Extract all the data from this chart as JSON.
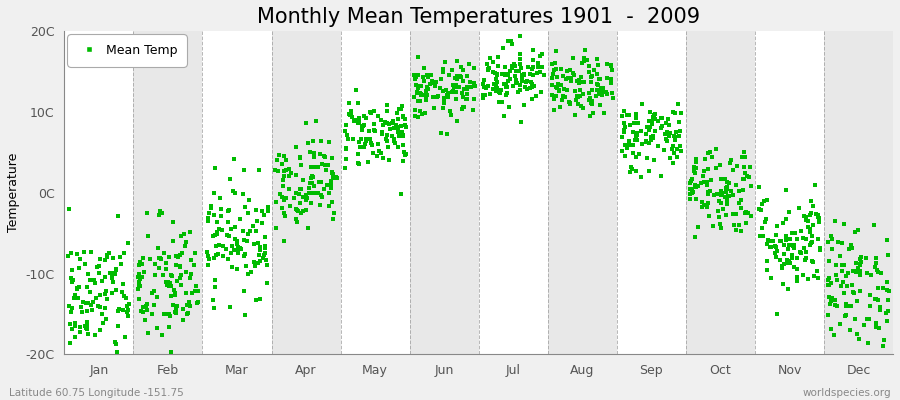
{
  "title": "Monthly Mean Temperatures 1901  -  2009",
  "ylabel": "Temperature",
  "ylim": [
    -20,
    20
  ],
  "yticks": [
    -20,
    -10,
    0,
    10,
    20
  ],
  "ytick_labels": [
    "-20C",
    "-10C",
    "0C",
    "10C",
    "20C"
  ],
  "months": [
    "Jan",
    "Feb",
    "Mar",
    "Apr",
    "May",
    "Jun",
    "Jul",
    "Aug",
    "Sep",
    "Oct",
    "Nov",
    "Dec"
  ],
  "n_years": 109,
  "monthly_means": [
    -13.0,
    -11.5,
    -5.5,
    1.5,
    7.5,
    12.5,
    14.5,
    13.0,
    7.0,
    0.5,
    -6.0,
    -11.5
  ],
  "monthly_stds": [
    4.0,
    4.2,
    3.5,
    2.8,
    2.2,
    1.8,
    2.0,
    1.8,
    2.2,
    2.8,
    3.2,
    3.8
  ],
  "marker_color": "#00BB00",
  "marker": "s",
  "marker_size": 2.5,
  "bg_white": "#FFFFFF",
  "bg_gray": "#E8E8E8",
  "figure_bg": "#F0F0F0",
  "grid_color": "#888888",
  "title_fontsize": 15,
  "label_fontsize": 9,
  "tick_fontsize": 9,
  "footer_left": "Latitude 60.75 Longitude -151.75",
  "footer_right": "worldspecies.org",
  "legend_label": "Mean Temp",
  "band_colors": [
    "#FFFFFF",
    "#E8E8E8"
  ]
}
